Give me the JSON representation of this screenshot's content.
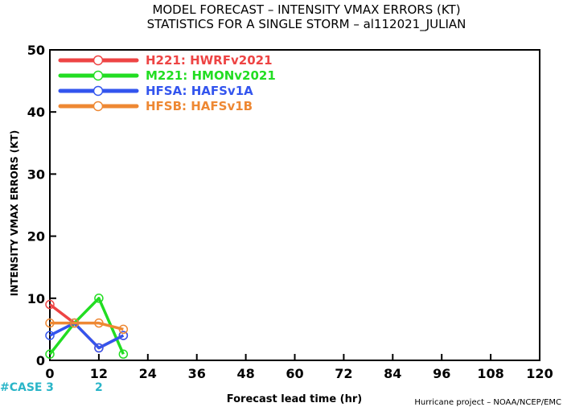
{
  "title_line1": "MODEL FORECAST – INTENSITY VMAX ERRORS (KT)",
  "title_line2": "STATISTICS FOR A SINGLE STORM – al112021_JULIAN",
  "credit": "Hurricane project – NOAA/NCEP/EMC",
  "case_label": "#CASE",
  "colors": {
    "case": "#2ab5c8"
  },
  "chart_data": {
    "type": "line",
    "xlabel": "Forecast lead time (hr)",
    "ylabel": "INTENSITY VMAX ERRORS (KT)",
    "xlim": [
      0,
      120
    ],
    "ylim": [
      0,
      50
    ],
    "xticks": [
      0,
      12,
      24,
      36,
      48,
      60,
      72,
      84,
      96,
      108,
      120
    ],
    "yticks": [
      0,
      10,
      20,
      30,
      40,
      50
    ],
    "grid": false,
    "legend_position": "top-left",
    "series": [
      {
        "name": "H221: HWRFv2021",
        "color": "#ee4444",
        "x": [
          0,
          6,
          12,
          18
        ],
        "y": [
          9,
          6,
          2,
          4
        ]
      },
      {
        "name": "M221: HMONv2021",
        "color": "#22dd22",
        "x": [
          0,
          6,
          12,
          18
        ],
        "y": [
          1,
          6,
          10,
          1
        ]
      },
      {
        "name": "HFSA: HAFSv1A",
        "color": "#3355ee",
        "x": [
          0,
          6,
          12,
          18
        ],
        "y": [
          4,
          6,
          2,
          4
        ]
      },
      {
        "name": "HFSB: HAFSv1B",
        "color": "#ee8833",
        "x": [
          0,
          6,
          12,
          18
        ],
        "y": [
          6,
          6,
          6,
          5
        ]
      }
    ],
    "cases": [
      {
        "x": 0,
        "count": "3"
      },
      {
        "x": 12,
        "count": "2"
      }
    ]
  }
}
